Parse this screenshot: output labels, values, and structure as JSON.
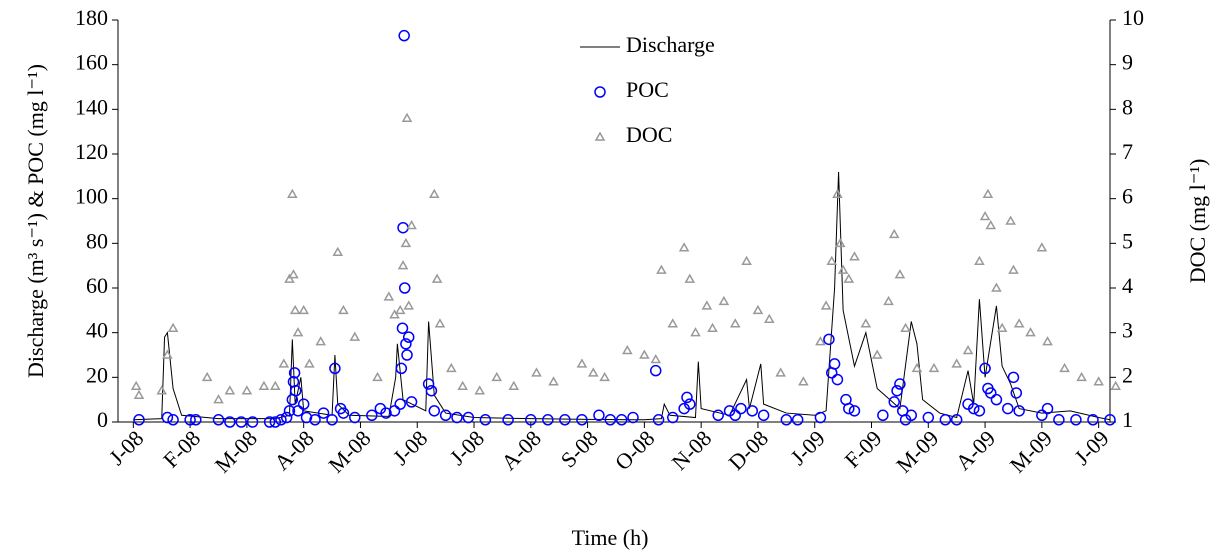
{
  "chart_data": {
    "type": "line",
    "xlabel": "Time (h)",
    "ylabel": "Discharge (m³ s⁻¹) & POC (mg l⁻¹)",
    "y2label": "DOC (mg l⁻¹)",
    "xlim": [
      -0.27,
      17.2
    ],
    "xticks": [
      {
        "value": 0,
        "label": "J-08"
      },
      {
        "value": 1,
        "label": "F-08"
      },
      {
        "value": 2,
        "label": "M-08"
      },
      {
        "value": 3,
        "label": "A-08"
      },
      {
        "value": 4,
        "label": "M-08"
      },
      {
        "value": 5,
        "label": "J-08"
      },
      {
        "value": 6,
        "label": "J-08"
      },
      {
        "value": 7,
        "label": "A-08"
      },
      {
        "value": 8,
        "label": "S-08"
      },
      {
        "value": 9,
        "label": "O-08"
      },
      {
        "value": 10,
        "label": "N-08"
      },
      {
        "value": 11,
        "label": "D-08"
      },
      {
        "value": 12,
        "label": "J-09"
      },
      {
        "value": 13,
        "label": "F-09"
      },
      {
        "value": 14,
        "label": "M-09"
      },
      {
        "value": 15,
        "label": "A-09"
      },
      {
        "value": 16,
        "label": "M-09"
      },
      {
        "value": 17,
        "label": "J-09"
      }
    ],
    "ylim": [
      0,
      180
    ],
    "yticks": [
      0,
      20,
      40,
      60,
      80,
      100,
      120,
      140,
      160,
      180
    ],
    "y2lim": [
      1,
      10
    ],
    "y2ticks": [
      1,
      2,
      3,
      4,
      5,
      6,
      7,
      8,
      9,
      10
    ],
    "series": [
      {
        "name": "Discharge",
        "type": "line",
        "color": "#000000",
        "x": [
          0,
          0.5,
          0.55,
          0.6,
          0.7,
          0.85,
          1.5,
          2.5,
          2.75,
          2.8,
          2.85,
          2.95,
          3.0,
          3.5,
          3.55,
          3.6,
          3.8,
          4.5,
          4.62,
          4.65,
          4.75,
          5.15,
          5.2,
          5.3,
          5.5,
          6,
          7,
          8,
          9,
          9.3,
          9.35,
          9.45,
          9.9,
          9.95,
          10.0,
          10.5,
          10.8,
          10.85,
          11.05,
          11.1,
          11.5,
          12,
          12.2,
          12.35,
          12.42,
          12.5,
          12.7,
          12.9,
          13.1,
          13.5,
          13.7,
          13.8,
          13.9,
          14.2,
          14.5,
          14.7,
          14.8,
          14.9,
          15.0,
          15.2,
          15.3,
          15.45,
          15.6,
          16,
          16.5,
          17,
          17.2
        ],
        "values": [
          1,
          1.5,
          38,
          40,
          15,
          3,
          1.5,
          1.5,
          3,
          37,
          8,
          20,
          5,
          3,
          30,
          8,
          3,
          2.5,
          20,
          35,
          10,
          5,
          45,
          12,
          4,
          2,
          1.5,
          1.2,
          1,
          1.5,
          8,
          3,
          2,
          27,
          6,
          3,
          19,
          6,
          26,
          8,
          4,
          3,
          5,
          60,
          112,
          50,
          25,
          40,
          15,
          6,
          45,
          35,
          10,
          4,
          2,
          23,
          8,
          55,
          20,
          52,
          25,
          17,
          6,
          4,
          5,
          2,
          1
        ]
      },
      {
        "name": "POC",
        "type": "scatter",
        "color": "#0000ff",
        "x": [
          0.1,
          0.6,
          0.7,
          1,
          1.1,
          1.5,
          1.7,
          1.9,
          2.1,
          2.4,
          2.5,
          2.6,
          2.7,
          2.75,
          2.8,
          2.82,
          2.84,
          2.86,
          2.9,
          3.0,
          3.05,
          3.2,
          3.35,
          3.5,
          3.55,
          3.65,
          3.7,
          3.9,
          4.2,
          4.35,
          4.45,
          4.6,
          4.7,
          4.72,
          4.74,
          4.75,
          4.77,
          4.78,
          4.8,
          4.82,
          4.85,
          4.9,
          5.2,
          5.25,
          5.3,
          5.5,
          5.7,
          5.9,
          6.2,
          6.6,
          7,
          7.3,
          7.6,
          7.9,
          8.2,
          8.4,
          8.6,
          8.8,
          9.2,
          9.25,
          9.5,
          9.7,
          9.75,
          9.8,
          10.3,
          10.5,
          10.6,
          10.7,
          10.9,
          11.1,
          11.5,
          11.7,
          12.1,
          12.25,
          12.3,
          12.35,
          12.4,
          12.55,
          12.6,
          12.7,
          13.2,
          13.4,
          13.45,
          13.5,
          13.55,
          13.6,
          13.7,
          14.0,
          14.3,
          14.5,
          14.7,
          14.8,
          14.9,
          15.0,
          15.05,
          15.1,
          15.2,
          15.4,
          15.5,
          15.55,
          15.6,
          16.0,
          16.1,
          16.3,
          16.6,
          16.9,
          17.2
        ],
        "values": [
          1,
          2,
          1,
          1,
          1,
          1,
          0,
          0,
          0,
          0,
          0,
          1,
          2,
          5,
          10,
          18,
          22,
          14,
          5,
          8,
          2,
          1,
          4,
          1,
          24,
          6,
          4,
          2,
          3,
          6,
          4,
          5,
          8,
          24,
          42,
          87,
          173,
          60,
          35,
          30,
          38,
          9,
          17,
          14,
          5,
          3,
          2,
          2,
          1,
          1,
          1,
          1,
          1,
          1,
          3,
          1,
          1,
          2,
          23,
          1,
          2,
          6,
          11,
          8,
          3,
          5,
          3,
          6,
          5,
          3,
          1,
          1,
          2,
          37,
          22,
          26,
          19,
          10,
          6,
          5,
          3,
          9,
          14,
          17,
          5,
          1,
          3,
          2,
          1,
          1,
          8,
          6,
          5,
          24,
          15,
          13,
          10,
          6,
          20,
          13,
          5,
          3,
          6,
          1,
          1,
          1,
          1
        ]
      },
      {
        "name": "DOC",
        "type": "scatter",
        "color": "#999999",
        "axis": "y2",
        "x": [
          0.05,
          0.1,
          0.5,
          0.6,
          0.7,
          1.3,
          1.5,
          1.7,
          2.0,
          2.3,
          2.5,
          2.65,
          2.75,
          2.8,
          2.82,
          2.85,
          2.9,
          3.0,
          3.1,
          3.3,
          3.6,
          3.7,
          3.9,
          4.3,
          4.5,
          4.6,
          4.7,
          4.75,
          4.8,
          4.82,
          4.85,
          4.9,
          5.3,
          5.35,
          5.4,
          5.6,
          5.8,
          6.1,
          6.4,
          6.7,
          7.1,
          7.4,
          7.9,
          8.1,
          8.3,
          8.7,
          9,
          9.2,
          9.3,
          9.5,
          9.7,
          9.8,
          9.9,
          10.1,
          10.2,
          10.4,
          10.6,
          10.8,
          11.0,
          11.2,
          11.4,
          11.8,
          12.1,
          12.2,
          12.3,
          12.4,
          12.45,
          12.5,
          12.6,
          12.7,
          12.9,
          13.1,
          13.3,
          13.4,
          13.5,
          13.6,
          13.8,
          14.1,
          14.5,
          14.7,
          14.9,
          15.0,
          15.05,
          15.1,
          15.2,
          15.3,
          15.45,
          15.5,
          15.6,
          15.8,
          16.0,
          16.1,
          16.4,
          16.7,
          17,
          17.3
        ],
        "values": [
          1.8,
          1.6,
          1.7,
          2.5,
          3.1,
          2,
          1.5,
          1.7,
          1.7,
          1.8,
          1.8,
          2.3,
          4.2,
          6.1,
          4.3,
          3.5,
          3,
          3.5,
          2.3,
          2.8,
          4.8,
          3.5,
          2.9,
          2,
          3.8,
          3.4,
          3.5,
          4.5,
          5,
          7.8,
          3.6,
          5.4,
          6.1,
          4.2,
          3.2,
          2.2,
          1.8,
          1.7,
          2,
          1.8,
          2.1,
          1.9,
          2.3,
          2.1,
          2.0,
          2.6,
          2.5,
          2.4,
          4.4,
          3.2,
          4.9,
          4.2,
          3.0,
          3.6,
          3.1,
          3.7,
          3.2,
          4.6,
          3.5,
          3.3,
          2.1,
          1.9,
          2.8,
          3.6,
          4.6,
          6.1,
          5,
          4.4,
          4.2,
          4.7,
          3.2,
          2.5,
          3.7,
          5.2,
          4.3,
          3.1,
          2.2,
          2.2,
          2.3,
          2.6,
          4.6,
          5.6,
          6.1,
          5.4,
          4.0,
          3.1,
          5.5,
          4.4,
          3.2,
          3.0,
          4.9,
          2.8,
          2.2,
          2.0,
          1.9,
          1.8
        ]
      }
    ]
  }
}
